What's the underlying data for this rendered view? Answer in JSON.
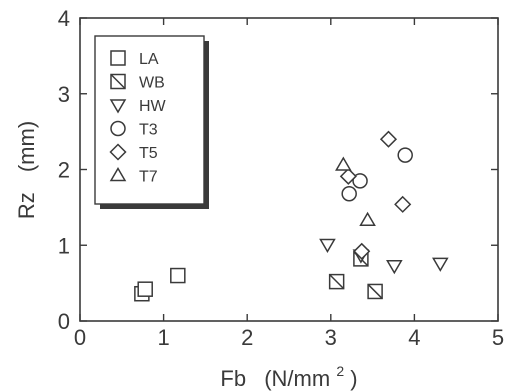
{
  "chart_data": {
    "type": "scatter",
    "xlabel": "Fb",
    "xlabel_unit": "(N/mm",
    "xlabel_unit_sup": "2",
    "xlabel_unit_close": ")",
    "ylabel": "Rz",
    "ylabel_unit": "(mm)",
    "xlim": [
      0,
      5
    ],
    "ylim": [
      0,
      4
    ],
    "xticks": [
      "0",
      "1",
      "2",
      "3",
      "4",
      "5"
    ],
    "yticks": [
      "0",
      "1",
      "2",
      "3",
      "4"
    ],
    "grid": false,
    "legend_position": "top-left",
    "series": [
      {
        "name": "LA",
        "marker": "square",
        "points": [
          [
            0.74,
            0.36
          ],
          [
            0.78,
            0.42
          ],
          [
            1.17,
            0.6
          ]
        ]
      },
      {
        "name": "WB",
        "marker": "square-diag",
        "points": [
          [
            3.07,
            0.52
          ],
          [
            3.36,
            0.82
          ],
          [
            3.53,
            0.39
          ]
        ]
      },
      {
        "name": "HW",
        "marker": "triangle-down",
        "points": [
          [
            2.96,
            1.01
          ],
          [
            3.36,
            0.87
          ],
          [
            3.76,
            0.73
          ],
          [
            4.31,
            0.76
          ]
        ]
      },
      {
        "name": "T3",
        "marker": "circle",
        "points": [
          [
            3.22,
            1.68
          ],
          [
            3.35,
            1.85
          ],
          [
            3.89,
            2.19
          ]
        ]
      },
      {
        "name": "T5",
        "marker": "diamond",
        "points": [
          [
            3.21,
            1.91
          ],
          [
            3.37,
            0.92
          ],
          [
            3.69,
            2.4
          ],
          [
            3.86,
            1.54
          ]
        ]
      },
      {
        "name": "T7",
        "marker": "triangle-up",
        "points": [
          [
            3.15,
            2.06
          ],
          [
            3.44,
            1.33
          ]
        ]
      }
    ]
  },
  "colors": {
    "ink": "#3a3a3a",
    "background": "#ffffff",
    "legend_shadow": "#3a3a3a"
  }
}
